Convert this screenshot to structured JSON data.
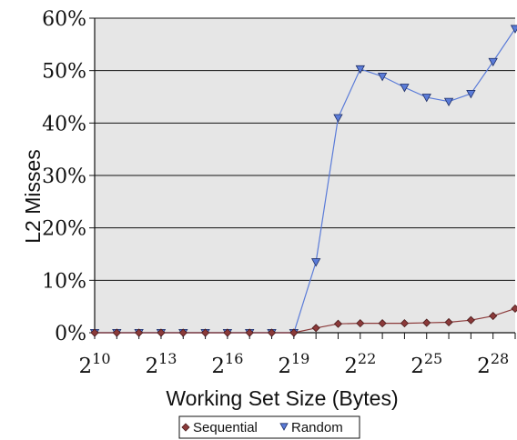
{
  "chart_data": {
    "type": "line",
    "xlabel": "Working Set Size (Bytes)",
    "ylabel": "L2 Misses",
    "x_scale": "log2",
    "x_base_label": "2",
    "x_tick_exponents": [
      "10",
      "13",
      "16",
      "19",
      "22",
      "25",
      "28"
    ],
    "x_exponents": [
      10,
      11,
      12,
      13,
      14,
      15,
      16,
      17,
      18,
      19,
      20,
      21,
      22,
      23,
      24,
      25,
      26,
      27,
      28,
      29
    ],
    "xlim_exponent": [
      10,
      29
    ],
    "ylim": [
      0,
      60
    ],
    "y_ticks": [
      0,
      10,
      20,
      30,
      40,
      50,
      60
    ],
    "y_tick_labels": [
      "0%",
      "10%",
      "20%",
      "30%",
      "40%",
      "50%",
      "60%"
    ],
    "grid": "horizontal",
    "legend_position": "bottom-center",
    "series": [
      {
        "name": "Sequential",
        "marker": "diamond",
        "color": "#8b3a3a",
        "values": [
          0,
          0,
          0,
          0,
          0,
          0,
          0,
          0,
          0,
          0,
          0.9,
          1.7,
          1.8,
          1.8,
          1.8,
          1.9,
          2.0,
          2.4,
          3.2,
          4.6
        ]
      },
      {
        "name": "Random",
        "marker": "triangle-down",
        "color": "#5a7bd8",
        "values": [
          0,
          0,
          0,
          0,
          0,
          0,
          0,
          0,
          0,
          0,
          13.5,
          41,
          50.3,
          48.9,
          46.8,
          44.9,
          44.1,
          45.6,
          51.7,
          58
        ]
      }
    ]
  }
}
